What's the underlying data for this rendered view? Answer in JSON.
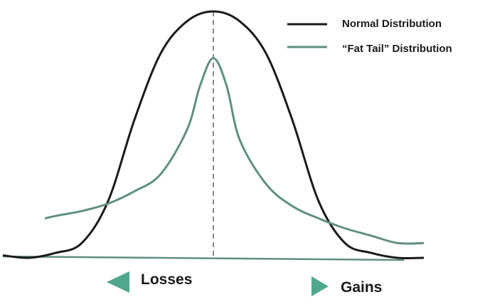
{
  "chart_data": {
    "type": "line",
    "title": "",
    "xlabel": "",
    "ylabel": "",
    "axes": "none",
    "grid": false,
    "legend_position": "top-right",
    "xlim": [
      -4,
      4
    ],
    "ylim": [
      0,
      1
    ],
    "series": [
      {
        "name": "Normal Distribution",
        "color": "#1a1a1a",
        "x": [
          -4.0,
          -3.5,
          -3.0,
          -2.5,
          -2.0,
          -1.5,
          -1.0,
          -0.5,
          0.0,
          0.5,
          1.0,
          1.5,
          2.0,
          2.5,
          3.0,
          3.5,
          4.0
        ],
        "y": [
          0.01,
          0.0,
          0.02,
          0.06,
          0.23,
          0.56,
          0.83,
          0.96,
          1.0,
          0.96,
          0.83,
          0.56,
          0.23,
          0.06,
          0.02,
          0.0,
          0.0
        ]
      },
      {
        "name": "“Fat Tail” Distribution",
        "color": "#5f8f80",
        "x": [
          -3.2,
          -3.0,
          -2.5,
          -2.0,
          -1.5,
          -1.0,
          -0.5,
          -0.25,
          0.0,
          0.25,
          0.5,
          1.0,
          1.5,
          2.0,
          2.5,
          3.0,
          3.5,
          4.0
        ],
        "y": [
          0.16,
          0.17,
          0.19,
          0.22,
          0.27,
          0.34,
          0.52,
          0.7,
          0.81,
          0.7,
          0.48,
          0.3,
          0.21,
          0.16,
          0.12,
          0.09,
          0.06,
          0.06
        ]
      }
    ],
    "baseline": {
      "color": "#5f8f80"
    },
    "center_line": {
      "x": 0,
      "style": "dashed",
      "color": "#888888"
    },
    "annotations": {
      "left_label": "Losses",
      "right_label": "Gains",
      "arrow_color": "#4fa88b"
    }
  }
}
